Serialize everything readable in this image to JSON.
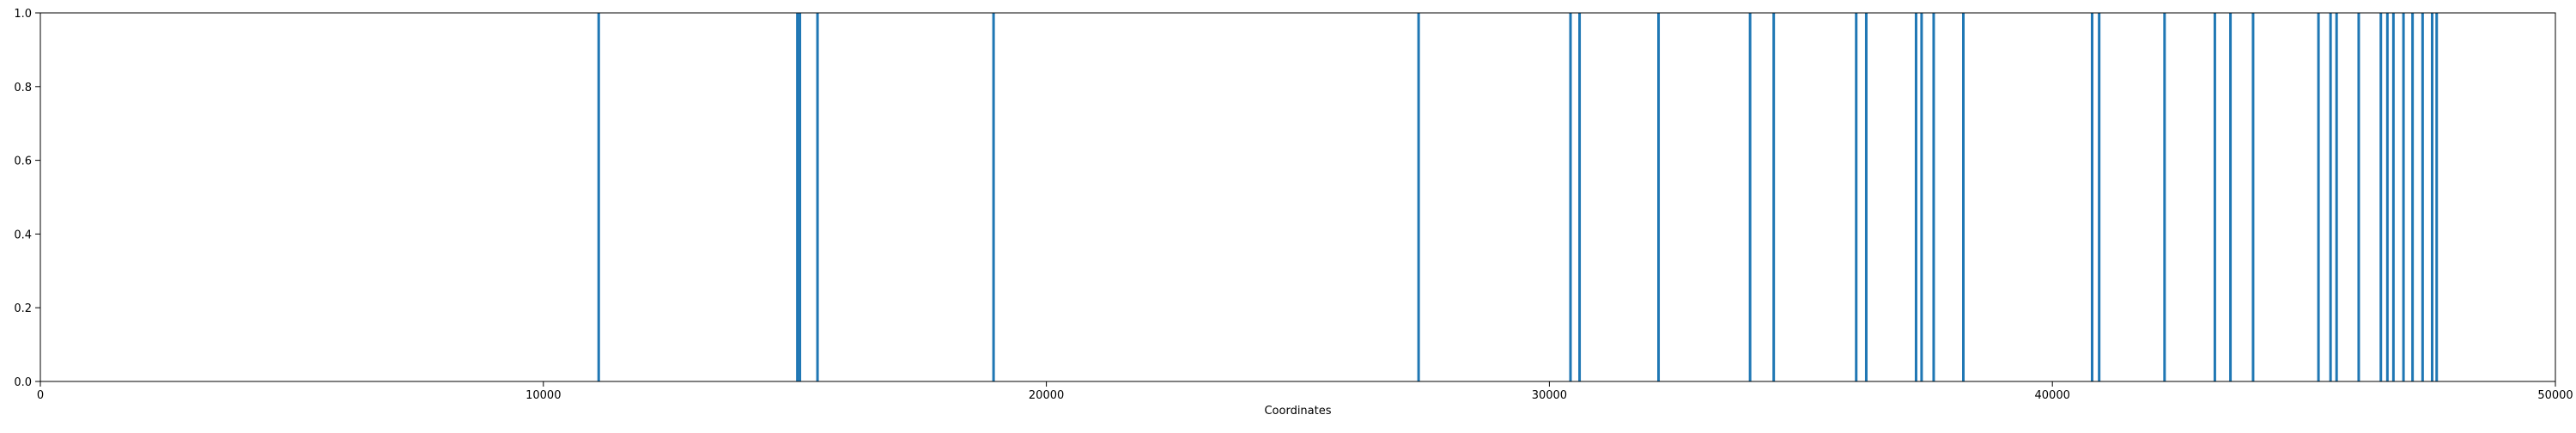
{
  "chart_data": {
    "type": "bar",
    "title": "",
    "xlabel": "Coordinates",
    "ylabel": "",
    "xlim": [
      0,
      50000
    ],
    "ylim": [
      0,
      1.0
    ],
    "x_ticks": [
      0,
      10000,
      20000,
      30000,
      40000,
      50000
    ],
    "y_ticks": [
      "0.0",
      "0.2",
      "0.4",
      "0.6",
      "0.8",
      "1.0"
    ],
    "grid": false,
    "legend": "none",
    "color": "#1f77b4",
    "series": [
      {
        "x": [
          11100,
          15050,
          15100,
          15450,
          18950,
          27400,
          30420,
          30600,
          32170,
          33990,
          34460,
          36100,
          36300,
          37290,
          37400,
          37640,
          38230,
          40790,
          40930,
          42230,
          43230,
          43540,
          43990,
          45290,
          45530,
          45650,
          46090,
          46530,
          46660,
          46780,
          46980,
          47160,
          47360,
          47550,
          47640
        ],
        "values": [
          1,
          1,
          1,
          1,
          1,
          1,
          1,
          1,
          1,
          1,
          1,
          1,
          1,
          1,
          1,
          1,
          1,
          1,
          1,
          1,
          1,
          1,
          1,
          1,
          1,
          1,
          1,
          1,
          1,
          1,
          1,
          1,
          1,
          1,
          1
        ]
      }
    ]
  }
}
